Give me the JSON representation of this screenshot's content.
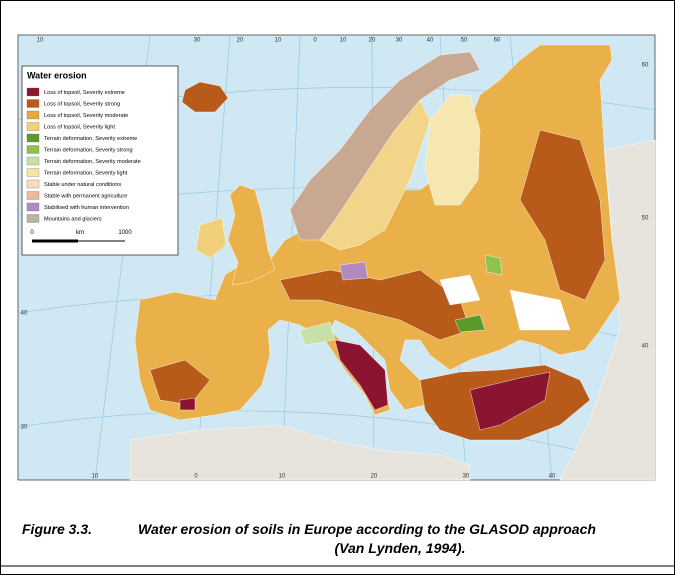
{
  "legend": {
    "title": "Water erosion",
    "items": [
      {
        "label": "Loss of topsoil, Severity extreme",
        "color": "#8b1530"
      },
      {
        "label": "Loss of topsoil, Severity strong",
        "color": "#b85a1a"
      },
      {
        "label": "Loss of topsoil, Severity moderate",
        "color": "#e8a83a"
      },
      {
        "label": "Loss of topsoil, Severity light",
        "color": "#f2cf7a"
      },
      {
        "label": "Terrain deformation, Severity extreme",
        "color": "#5a9a2a"
      },
      {
        "label": "Terrain deformation, Severity strong",
        "color": "#8fc24a"
      },
      {
        "label": "Terrain deformation, Severity moderate",
        "color": "#c8e0a8"
      },
      {
        "label": "Terrain deformation, Severity light",
        "color": "#f5e6a8"
      },
      {
        "label": "Stable under natural conditions",
        "color": "#f7dcc0"
      },
      {
        "label": "Stable with permanent agriculture",
        "color": "#efb89e"
      },
      {
        "label": "Stabilised with human intervention",
        "color": "#b08ac0"
      },
      {
        "label": "Mountains and glaciers",
        "color": "#b8b4a0"
      }
    ],
    "scale": [
      "0",
      "km",
      "1000"
    ]
  },
  "graticule": {
    "top": [
      "10",
      "30",
      "20",
      "10",
      "0",
      "10",
      "20",
      "30",
      "40",
      "50",
      "60"
    ],
    "left": [
      "40",
      "30"
    ],
    "right": [
      "60",
      "50",
      "40"
    ],
    "bottom": [
      "10",
      "0",
      "10",
      "20",
      "30",
      "40"
    ]
  },
  "caption": {
    "figure": "Figure 3.3.",
    "text": [
      "Water erosion of soils in Europe according to the GLASOD approach",
      "(Van Lynden, 1994)."
    ]
  }
}
